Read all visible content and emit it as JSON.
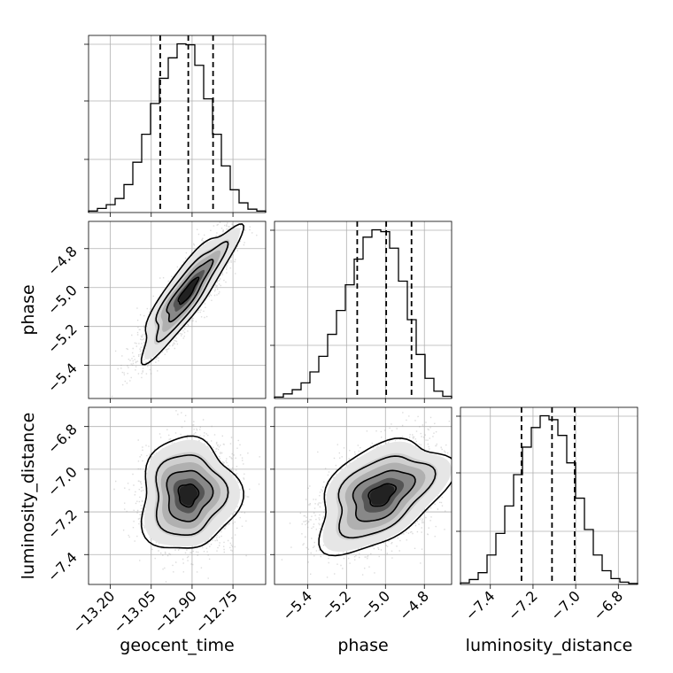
{
  "chart_data": {
    "type": "corner",
    "parameters": [
      "geocent_time",
      "phase",
      "luminosity_distance"
    ],
    "axis_labels": {
      "geocent_time": "geocent_time",
      "phase": "phase",
      "luminosity_distance": "luminosity_distance"
    },
    "ranges": {
      "geocent_time": [
        -13.28,
        -12.63
      ],
      "phase": [
        -5.57,
        -4.66
      ],
      "luminosity_distance": [
        -7.54,
        -6.71
      ]
    },
    "ticks": {
      "geocent_time": [
        {
          "value": -13.2,
          "label": "−13.20"
        },
        {
          "value": -13.05,
          "label": "−13.05"
        },
        {
          "value": -12.9,
          "label": "−12.90"
        },
        {
          "value": -12.75,
          "label": "−12.75"
        }
      ],
      "phase": [
        {
          "value": -5.4,
          "label": "−5.4"
        },
        {
          "value": -5.2,
          "label": "−5.2"
        },
        {
          "value": -5.0,
          "label": "−5.0"
        },
        {
          "value": -4.8,
          "label": "−4.8"
        }
      ],
      "luminosity_distance": [
        {
          "value": -7.4,
          "label": "−7.4"
        },
        {
          "value": -7.2,
          "label": "−7.2"
        },
        {
          "value": -7.0,
          "label": "−7.0"
        },
        {
          "value": -6.8,
          "label": "−6.8"
        }
      ]
    },
    "grid": true,
    "marginals": [
      {
        "param": "geocent_time",
        "bin_edges": [
          -13.28,
          -13.2475,
          -13.215,
          -13.1825,
          -13.15,
          -13.1175,
          -13.085,
          -13.0525,
          -13.02,
          -12.9875,
          -12.955,
          -12.9225,
          -12.89,
          -12.8575,
          -12.825,
          -12.7925,
          -12.76,
          -12.7275,
          -12.695,
          -12.6625,
          -12.63
        ],
        "counts": [
          8,
          22,
          42,
          75,
          150,
          270,
          420,
          585,
          720,
          830,
          905,
          900,
          790,
          610,
          420,
          250,
          122,
          52,
          18,
          8
        ],
        "quantiles": [
          -13.017,
          -12.914,
          -12.823
        ]
      },
      {
        "param": "phase",
        "bin_edges": [
          -5.57,
          -5.5245,
          -5.479,
          -5.4335,
          -5.388,
          -5.3425,
          -5.297,
          -5.2515,
          -5.206,
          -5.1605,
          -5.115,
          -5.0695,
          -5.024,
          -4.9785,
          -4.933,
          -4.8875,
          -4.842,
          -4.7965,
          -4.751,
          -4.7055,
          -4.66
        ],
        "counts": [
          8,
          25,
          48,
          85,
          145,
          230,
          350,
          480,
          620,
          760,
          880,
          920,
          910,
          820,
          640,
          430,
          240,
          110,
          40,
          12
        ],
        "quantiles": [
          -5.145,
          -4.996,
          -4.866
        ]
      },
      {
        "param": "luminosity_distance",
        "bin_edges": [
          -7.54,
          -7.4985,
          -7.457,
          -7.4155,
          -7.374,
          -7.3325,
          -7.291,
          -7.2495,
          -7.208,
          -7.1665,
          -7.125,
          -7.0835,
          -7.042,
          -7.0005,
          -6.959,
          -6.9175,
          -6.876,
          -6.8345,
          -6.793,
          -6.7515,
          -6.71
        ],
        "counts": [
          8,
          25,
          60,
          150,
          260,
          400,
          560,
          700,
          800,
          860,
          840,
          760,
          620,
          440,
          280,
          150,
          70,
          30,
          12,
          5
        ],
        "quantiles": [
          -7.254,
          -7.111,
          -7.005
        ]
      }
    ],
    "joints": [
      {
        "x": "geocent_time",
        "y": "phase",
        "mean": [
          -12.915,
          -5.02
        ],
        "std": [
          0.085,
          0.16
        ],
        "corr": 0.88
      },
      {
        "x": "geocent_time",
        "y": "luminosity_distance",
        "mean": [
          -12.915,
          -7.12
        ],
        "std": [
          0.085,
          0.125
        ],
        "corr": 0.05
      },
      {
        "x": "phase",
        "y": "luminosity_distance",
        "mean": [
          -5.02,
          -7.12
        ],
        "std": [
          0.16,
          0.125
        ],
        "corr": 0.45
      }
    ]
  }
}
